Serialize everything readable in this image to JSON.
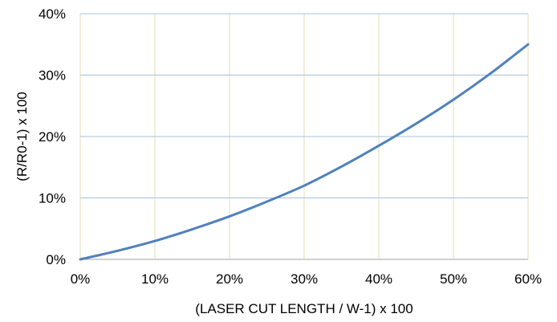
{
  "chart_data": {
    "type": "line",
    "title": "",
    "xlabel": "(LASER CUT LENGTH / W-1) x 100",
    "ylabel": "(R/R0-1) x 100",
    "xlim": [
      0,
      60
    ],
    "ylim": [
      0,
      40
    ],
    "x_ticks": [
      "0%",
      "10%",
      "20%",
      "30%",
      "40%",
      "50%",
      "60%"
    ],
    "y_ticks": [
      "0%",
      "10%",
      "20%",
      "30%",
      "40%"
    ],
    "grid": true,
    "legend": "none",
    "series": [
      {
        "x": [
          0,
          5,
          10,
          15,
          20,
          25,
          30,
          35,
          40,
          45,
          50,
          55,
          60
        ],
        "values": [
          0,
          1.4,
          3.0,
          4.9,
          7.0,
          9.4,
          12.0,
          15.1,
          18.5,
          22.1,
          26.0,
          30.3,
          35.0
        ],
        "color": "#4f81bd"
      }
    ],
    "colors": {
      "grid_vertical": "#e3deb8",
      "grid_horizontal": "#a7c0dc",
      "axis": "#a6a6a6",
      "line": "#4f81bd"
    }
  }
}
